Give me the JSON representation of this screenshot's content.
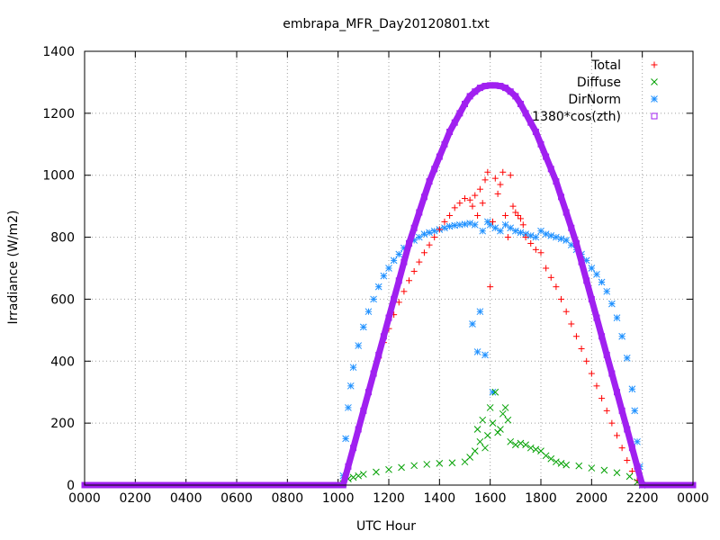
{
  "chart_data": {
    "type": "scatter",
    "title": "embrapa_MFR_Day20120801.txt",
    "xlabel": "UTC Hour",
    "ylabel": "Irradiance (W/m2)",
    "xlim": [
      0,
      2400
    ],
    "ylim": [
      0,
      1400
    ],
    "grid": true,
    "legend_position": "top-right",
    "x_ticks": [
      "0000",
      "0200",
      "0400",
      "0600",
      "0800",
      "1000",
      "1200",
      "1400",
      "1600",
      "1800",
      "2000",
      "2200",
      "0000"
    ],
    "y_ticks": [
      "0",
      "200",
      "400",
      "600",
      "800",
      "1000",
      "1200",
      "1400"
    ],
    "series": [
      {
        "name": "Total",
        "marker": "+",
        "color": "#ff0000",
        "x": [
          1020,
          1040,
          1060,
          1080,
          1100,
          1120,
          1140,
          1160,
          1180,
          1200,
          1220,
          1240,
          1260,
          1280,
          1300,
          1320,
          1340,
          1360,
          1380,
          1400,
          1420,
          1440,
          1460,
          1480,
          1500,
          1520,
          1530,
          1540,
          1550,
          1560,
          1570,
          1580,
          1590,
          1600,
          1610,
          1620,
          1630,
          1640,
          1650,
          1660,
          1670,
          1680,
          1690,
          1700,
          1710,
          1720,
          1730,
          1740,
          1760,
          1780,
          1800,
          1820,
          1840,
          1860,
          1880,
          1900,
          1920,
          1940,
          1960,
          1980,
          2000,
          2020,
          2040,
          2060,
          2080,
          2100,
          2120,
          2140,
          2160,
          2180,
          2200
        ],
        "y": [
          5,
          60,
          120,
          180,
          240,
          300,
          355,
          410,
          460,
          505,
          550,
          590,
          625,
          660,
          690,
          720,
          750,
          775,
          800,
          825,
          850,
          870,
          895,
          910,
          925,
          920,
          900,
          935,
          870,
          955,
          910,
          985,
          1010,
          640,
          850,
          990,
          940,
          970,
          1010,
          870,
          800,
          1000,
          900,
          880,
          870,
          860,
          840,
          800,
          780,
          760,
          750,
          700,
          670,
          640,
          600,
          560,
          520,
          480,
          440,
          400,
          360,
          320,
          280,
          240,
          200,
          160,
          120,
          80,
          45,
          15,
          0
        ]
      },
      {
        "name": "Diffuse",
        "marker": "x",
        "color": "#00a000",
        "x": [
          1020,
          1040,
          1060,
          1080,
          1100,
          1150,
          1200,
          1250,
          1300,
          1350,
          1400,
          1450,
          1500,
          1520,
          1540,
          1550,
          1560,
          1570,
          1580,
          1590,
          1600,
          1610,
          1620,
          1630,
          1640,
          1650,
          1660,
          1670,
          1680,
          1700,
          1720,
          1740,
          1760,
          1780,
          1800,
          1820,
          1840,
          1860,
          1880,
          1900,
          1950,
          2000,
          2050,
          2100,
          2150,
          2180,
          2200
        ],
        "y": [
          5,
          20,
          25,
          30,
          35,
          42,
          50,
          57,
          63,
          67,
          70,
          72,
          75,
          90,
          110,
          180,
          140,
          210,
          120,
          160,
          250,
          200,
          300,
          170,
          180,
          230,
          250,
          210,
          140,
          130,
          135,
          130,
          120,
          115,
          110,
          95,
          85,
          75,
          70,
          65,
          62,
          55,
          48,
          40,
          28,
          10,
          0
        ]
      },
      {
        "name": "DirNorm",
        "marker": "*",
        "color": "#1e90ff",
        "x": [
          1020,
          1030,
          1040,
          1050,
          1060,
          1080,
          1100,
          1120,
          1140,
          1160,
          1180,
          1200,
          1220,
          1240,
          1260,
          1280,
          1300,
          1320,
          1340,
          1360,
          1380,
          1400,
          1420,
          1440,
          1460,
          1480,
          1500,
          1520,
          1530,
          1540,
          1550,
          1560,
          1570,
          1580,
          1590,
          1600,
          1610,
          1620,
          1640,
          1660,
          1680,
          1700,
          1720,
          1740,
          1760,
          1780,
          1800,
          1820,
          1840,
          1860,
          1880,
          1900,
          1920,
          1940,
          1960,
          1980,
          2000,
          2020,
          2040,
          2060,
          2080,
          2100,
          2120,
          2140,
          2160,
          2170,
          2180,
          2190,
          2200
        ],
        "y": [
          30,
          150,
          250,
          320,
          380,
          450,
          510,
          560,
          600,
          640,
          675,
          700,
          725,
          745,
          765,
          780,
          790,
          800,
          810,
          815,
          820,
          825,
          830,
          835,
          838,
          840,
          842,
          845,
          520,
          840,
          430,
          560,
          820,
          420,
          850,
          840,
          300,
          830,
          820,
          840,
          830,
          820,
          815,
          810,
          805,
          800,
          820,
          810,
          805,
          800,
          795,
          790,
          775,
          760,
          745,
          725,
          700,
          680,
          655,
          625,
          585,
          540,
          480,
          410,
          310,
          240,
          140,
          60,
          0
        ]
      },
      {
        "name": "1380*cos(zth)",
        "marker": "square",
        "color": "#a020f0",
        "x": [
          0,
          200,
          400,
          600,
          800,
          1000,
          1020,
          1040,
          1060,
          1080,
          1100,
          1120,
          1140,
          1160,
          1180,
          1200,
          1220,
          1240,
          1260,
          1280,
          1300,
          1320,
          1340,
          1360,
          1380,
          1400,
          1420,
          1440,
          1460,
          1480,
          1500,
          1520,
          1540,
          1560,
          1580,
          1600,
          1620,
          1640,
          1660,
          1680,
          1700,
          1720,
          1740,
          1760,
          1780,
          1800,
          1820,
          1840,
          1860,
          1880,
          1900,
          1920,
          1940,
          1960,
          1980,
          2000,
          2020,
          2040,
          2060,
          2080,
          2100,
          2120,
          2140,
          2160,
          2180,
          2200,
          2220,
          2400
        ],
        "y": [
          0,
          0,
          0,
          0,
          0,
          0,
          0,
          60,
          120,
          180,
          240,
          300,
          360,
          420,
          480,
          540,
          600,
          660,
          720,
          780,
          830,
          880,
          930,
          980,
          1020,
          1060,
          1100,
          1140,
          1170,
          1200,
          1230,
          1255,
          1270,
          1282,
          1288,
          1290,
          1290,
          1288,
          1282,
          1270,
          1255,
          1230,
          1200,
          1170,
          1140,
          1100,
          1060,
          1020,
          980,
          930,
          880,
          830,
          780,
          720,
          660,
          600,
          540,
          480,
          420,
          360,
          300,
          240,
          180,
          120,
          60,
          0,
          0,
          0
        ]
      }
    ]
  }
}
